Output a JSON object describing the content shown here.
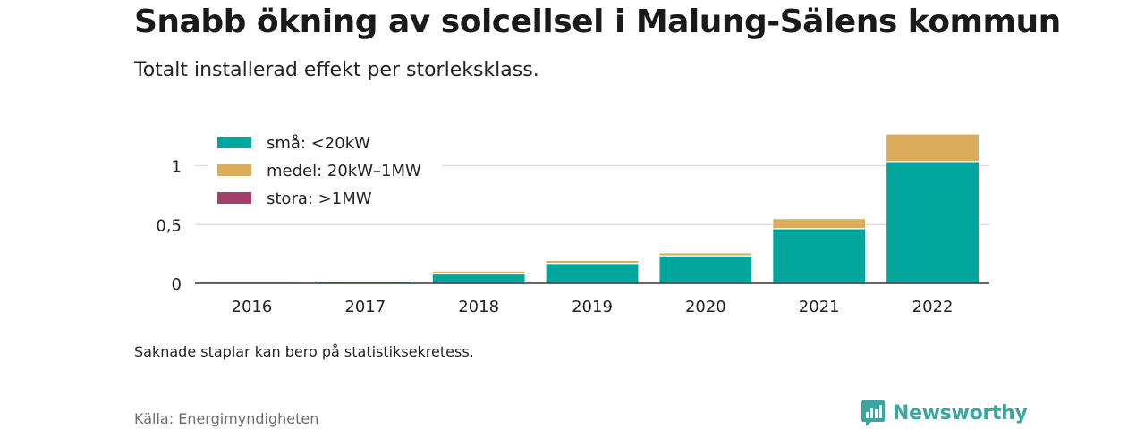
{
  "title": "Snabb ökning av solcellsel i Malung-Sälens kommun",
  "subtitle": "Totalt installerad effekt per storleksklass.",
  "note": "Saknade staplar kan bero på statistiksekretess.",
  "source": "Källa: Energimyndigheten",
  "brand": {
    "name": "Newsworthy",
    "icon": "newsworthy-logo-icon"
  },
  "chart_data": {
    "type": "bar",
    "stacked": true,
    "categories": [
      "2016",
      "2017",
      "2018",
      "2019",
      "2020",
      "2021",
      "2022"
    ],
    "series": [
      {
        "name": "små: <20kW",
        "color": "#00a59b",
        "values": [
          0.01,
          0.02,
          0.08,
          0.17,
          0.235,
          0.465,
          1.035
        ]
      },
      {
        "name": "medel: 20kW–1MW",
        "color": "#dbac5a",
        "values": [
          0.0,
          0.005,
          0.025,
          0.025,
          0.025,
          0.085,
          0.235
        ]
      },
      {
        "name": "stora: >1MW",
        "color": "#a43f6b",
        "values": [
          0,
          0,
          0,
          0,
          0,
          0,
          0
        ]
      }
    ],
    "yticks": [
      {
        "value": 0,
        "label": "0"
      },
      {
        "value": 0.5,
        "label": "0,5"
      },
      {
        "value": 1,
        "label": "1"
      }
    ],
    "ylim": [
      0,
      1.27
    ],
    "grid": true,
    "legend_position": "top-left",
    "xlabel": "",
    "ylabel": ""
  }
}
